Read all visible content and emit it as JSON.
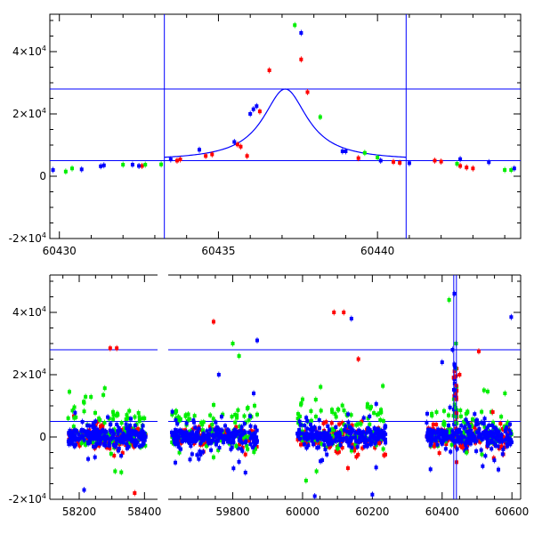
{
  "chart_data": [
    {
      "type": "scatter",
      "title": "",
      "xlabel": "",
      "ylabel": "",
      "xlim": [
        60429.7,
        60444.5
      ],
      "ylim": [
        -20000,
        52000
      ],
      "x_ticks": [
        60430,
        60435,
        60440
      ],
      "x_tick_labels": [
        "60430",
        "60435",
        "60440"
      ],
      "y_ticks": [
        -20000,
        0,
        20000,
        40000
      ],
      "y_tick_labels": [
        {
          "mant": "-2×10",
          "exp": "4"
        },
        {
          "mant": "0",
          "exp": ""
        },
        {
          "mant": "2×10",
          "exp": "4"
        },
        {
          "mant": "4×10",
          "exp": "4"
        }
      ],
      "colors": {
        "red": "#ff0000",
        "green": "#00ee00",
        "blue": "#0000ff",
        "line": "#0000ff"
      },
      "hlines": [
        28000,
        5000
      ],
      "vlines": [
        60433.3,
        60440.9
      ],
      "model_curve": {
        "x0": 60437.1,
        "peak": 23000,
        "baseline": 5000,
        "tE": 0.85
      },
      "series": [
        {
          "color": "red",
          "points": [
            [
              60433.7,
              5000
            ],
            [
              60434.6,
              6500
            ],
            [
              60434.8,
              7000
            ],
            [
              60435.6,
              10200
            ],
            [
              60435.7,
              9500
            ],
            [
              60435.9,
              6500
            ],
            [
              60436.3,
              20800
            ],
            [
              60436.6,
              34000
            ],
            [
              60437.6,
              37500
            ],
            [
              60437.8,
              27000
            ],
            [
              60439.4,
              5800
            ],
            [
              60440.5,
              4600
            ],
            [
              60440.7,
              4300
            ],
            [
              60441.8,
              5000
            ],
            [
              60442.0,
              4700
            ],
            [
              60442.6,
              3300
            ],
            [
              60442.8,
              2800
            ],
            [
              60443.0,
              2500
            ],
            [
              60432.6,
              3300
            ],
            [
              60433.8,
              5400
            ]
          ]
        },
        {
          "color": "green",
          "points": [
            [
              60430.2,
              1500
            ],
            [
              60430.4,
              2500
            ],
            [
              60432.0,
              3700
            ],
            [
              60432.7,
              3700
            ],
            [
              60433.2,
              3800
            ],
            [
              60437.4,
              48500
            ],
            [
              60438.2,
              19000
            ],
            [
              60439.6,
              7500
            ],
            [
              60440.0,
              6000
            ],
            [
              60442.5,
              4000
            ],
            [
              60444.0,
              2000
            ],
            [
              60444.2,
              2000
            ]
          ]
        },
        {
          "color": "blue",
          "points": [
            [
              60429.8,
              2000
            ],
            [
              60430.7,
              2200
            ],
            [
              60431.3,
              3200
            ],
            [
              60432.3,
              3700
            ],
            [
              60432.5,
              3300
            ],
            [
              60433.5,
              5400
            ],
            [
              60434.4,
              8500
            ],
            [
              60435.5,
              11000
            ],
            [
              60436.1,
              21500
            ],
            [
              60436.2,
              22500
            ],
            [
              60437.6,
              46000
            ],
            [
              60439.0,
              8000
            ],
            [
              60440.1,
              5000
            ],
            [
              60442.6,
              5500
            ],
            [
              60443.5,
              4500
            ],
            [
              60444.3,
              2500
            ],
            [
              60441.0,
              4200
            ],
            [
              60431.4,
              3500
            ],
            [
              60436.0,
              20000
            ],
            [
              60438.9,
              8000
            ]
          ]
        }
      ]
    },
    {
      "type": "scatter",
      "title": "",
      "xlabel": "",
      "ylabel": "",
      "xlim": [
        58110,
        60625
      ],
      "ylim": [
        -20000,
        52000
      ],
      "x_ticks": [
        58200,
        58400,
        59800,
        60000,
        60200,
        60400,
        60600
      ],
      "x_tick_labels": [
        "58200",
        "58400",
        "59800",
        "60000",
        "60200",
        "60400",
        "60600"
      ],
      "x_segments": [
        {
          "start": 58110,
          "end": 58440,
          "gap_after": 59615
        },
        {
          "start": 59615,
          "end": 60625
        }
      ],
      "y_ticks": [
        -20000,
        0,
        20000,
        40000
      ],
      "y_tick_labels": [
        {
          "mant": "-2×10",
          "exp": "4"
        },
        {
          "mant": "0",
          "exp": ""
        },
        {
          "mant": "2×10",
          "exp": "4"
        },
        {
          "mant": "4×10",
          "exp": "4"
        }
      ],
      "colors": {
        "red": "#ff0000",
        "green": "#00ee00",
        "blue": "#0000ff",
        "line": "#0000ff"
      },
      "hlines": [
        28000,
        5000
      ],
      "vlines": [
        60433.3,
        60440.9
      ],
      "seasons": [
        {
          "start": 58165,
          "end": 58405
        },
        {
          "start": 59625,
          "end": 59870
        },
        {
          "start": 59985,
          "end": 60240
        },
        {
          "start": 60355,
          "end": 60600
        }
      ],
      "outliers": [
        {
          "color": "red",
          "points": [
            [
              58295,
              28500
            ],
            [
              58315,
              28500
            ],
            [
              58370,
              -18000
            ],
            [
              59745,
              37000
            ],
            [
              60090,
              40000
            ],
            [
              60118,
              40000
            ],
            [
              60160,
              25000
            ],
            [
              60505,
              27500
            ],
            [
              60545,
              8000
            ],
            [
              60220,
              -2000
            ],
            [
              60130,
              -10000
            ],
            [
              60450,
              20000
            ],
            [
              60570,
              -3000
            ]
          ]
        },
        {
          "color": "green",
          "points": [
            [
              58170,
              14500
            ],
            [
              58215,
              11000
            ],
            [
              58330,
              4500
            ],
            [
              58310,
              -11000
            ],
            [
              59745,
              -6500
            ],
            [
              59800,
              30000
            ],
            [
              59818,
              26000
            ],
            [
              59810,
              -3000
            ],
            [
              60010,
              -14000
            ],
            [
              60040,
              -11000
            ],
            [
              60420,
              44000
            ],
            [
              60440,
              30000
            ],
            [
              60520,
              15000
            ],
            [
              60580,
              14000
            ],
            [
              60470,
              -5000
            ]
          ]
        },
        {
          "color": "blue",
          "points": [
            [
              58215,
              -17000
            ],
            [
              58385,
              -3000
            ],
            [
              59760,
              20000
            ],
            [
              59860,
              14000
            ],
            [
              59870,
              31000
            ],
            [
              60140,
              38000
            ],
            [
              60200,
              -18500
            ],
            [
              60400,
              24000
            ],
            [
              60435,
              46000
            ],
            [
              60575,
              -4000
            ],
            [
              60598,
              38500
            ],
            [
              60035,
              -19000
            ],
            [
              60430,
              28000
            ]
          ]
        }
      ]
    }
  ]
}
